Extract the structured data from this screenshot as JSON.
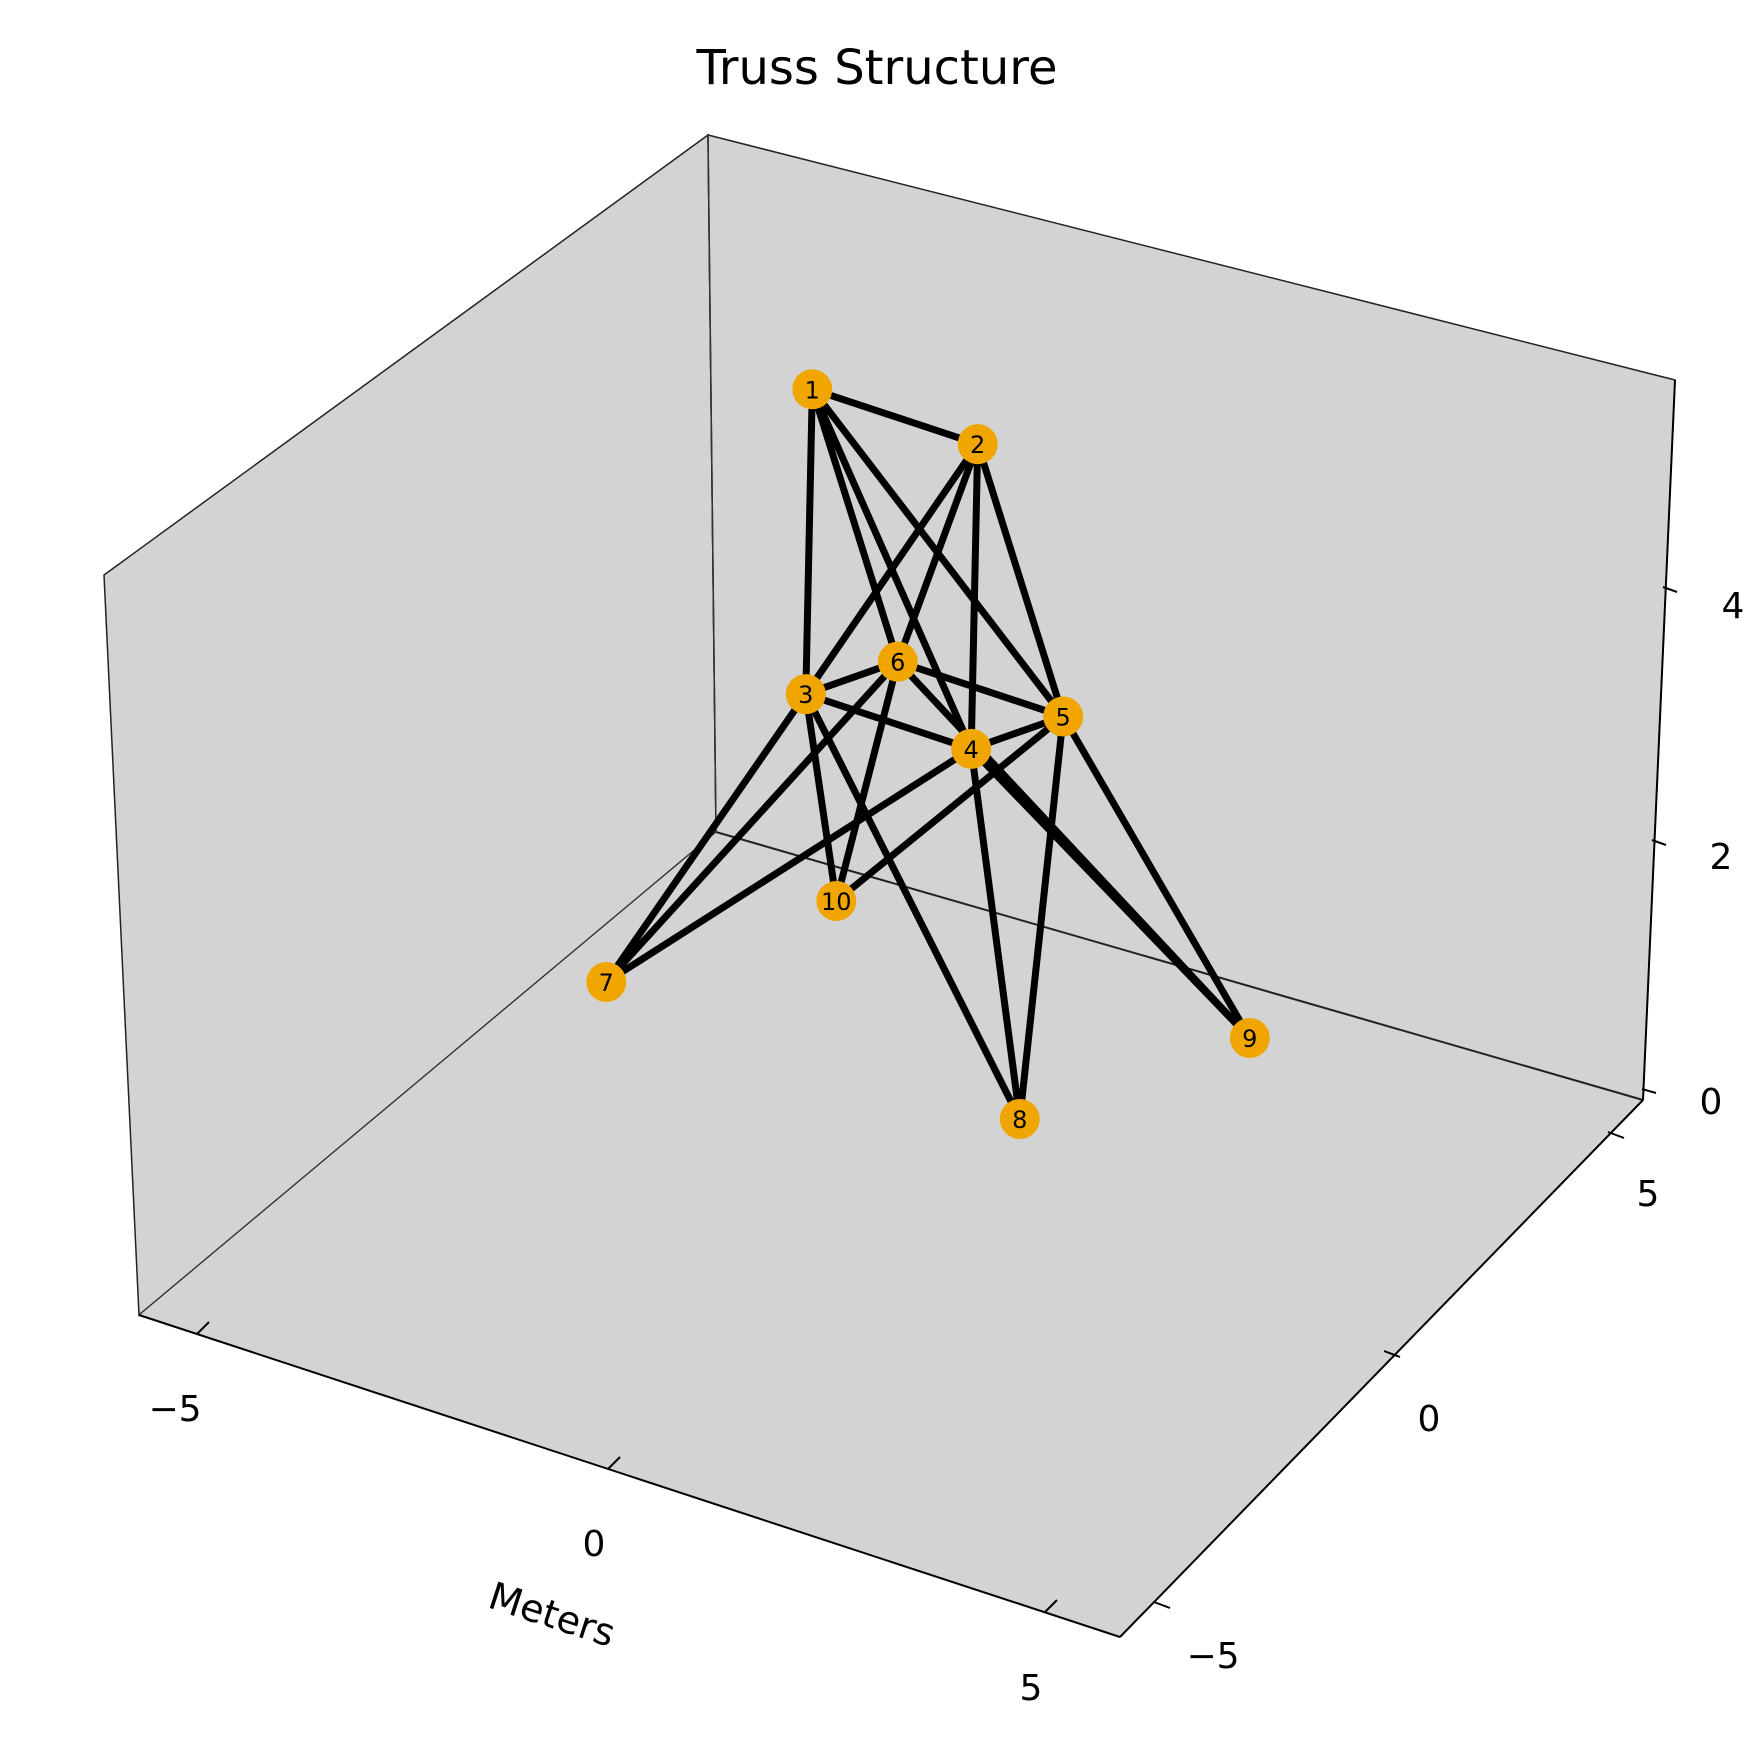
{
  "chart_data": {
    "type": "3d-line",
    "title": "Truss Structure",
    "xlabel": "Meters",
    "ylabel": "",
    "zlabel": "",
    "x_ticks": [
      "−5",
      "0",
      "5"
    ],
    "y_ticks": [
      "−5",
      "0",
      "5"
    ],
    "z_ticks": [
      "0",
      "2",
      "4"
    ],
    "xlim": [
      -6.5,
      7
    ],
    "ylim": [
      -7.5,
      7.5
    ],
    "zlim": [
      0,
      5.5
    ],
    "colors": {
      "pane": "#d3d3d3",
      "member": "#000000",
      "node": "#f0a500",
      "label": "#000000"
    },
    "nodes": [
      {
        "id": "1",
        "x": -1.0,
        "y": 1.0,
        "z": 5.0
      },
      {
        "id": "2",
        "x": 1.0,
        "y": 1.0,
        "z": 5.0
      },
      {
        "id": "3",
        "x": -1.0,
        "y": 1.0,
        "z": 2.5
      },
      {
        "id": "4",
        "x": 1.0,
        "y": 1.0,
        "z": 2.5
      },
      {
        "id": "5",
        "x": 1.0,
        "y": -1.0,
        "z": 2.5
      },
      {
        "id": "6",
        "x": -1.0,
        "y": -1.0,
        "z": 2.5
      },
      {
        "id": "7",
        "x": -2.5,
        "y": 2.5,
        "z": 0.0
      },
      {
        "id": "8",
        "x": 2.5,
        "y": 2.5,
        "z": 0.0
      },
      {
        "id": "9",
        "x": 2.5,
        "y": -2.5,
        "z": 0.0
      },
      {
        "id": "10",
        "x": -2.5,
        "y": -2.5,
        "z": 0.0
      }
    ],
    "members": [
      [
        "1",
        "2"
      ],
      [
        "1",
        "4"
      ],
      [
        "2",
        "3"
      ],
      [
        "1",
        "5"
      ],
      [
        "2",
        "6"
      ],
      [
        "2",
        "4"
      ],
      [
        "2",
        "5"
      ],
      [
        "1",
        "3"
      ],
      [
        "1",
        "6"
      ],
      [
        "3",
        "6"
      ],
      [
        "4",
        "5"
      ],
      [
        "3",
        "4"
      ],
      [
        "5",
        "6"
      ],
      [
        "3",
        "10"
      ],
      [
        "6",
        "7"
      ],
      [
        "4",
        "7"
      ],
      [
        "3",
        "8"
      ],
      [
        "4",
        "9"
      ],
      [
        "5",
        "8"
      ],
      [
        "6",
        "10"
      ],
      [
        "3",
        "7"
      ],
      [
        "4",
        "8"
      ],
      [
        "5",
        "10"
      ],
      [
        "6",
        "9"
      ],
      [
        "5",
        "9"
      ]
    ]
  }
}
